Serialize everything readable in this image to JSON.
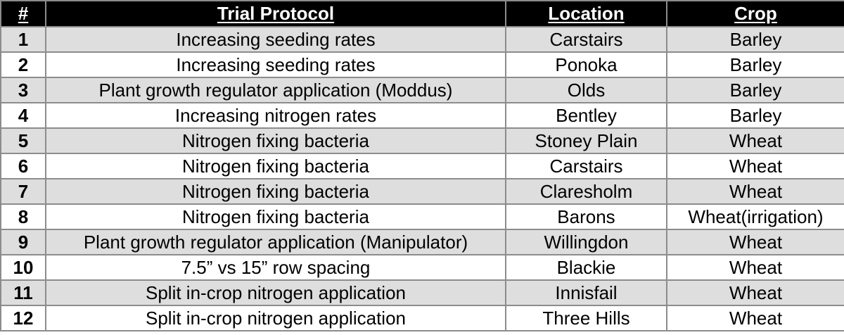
{
  "table": {
    "headers": [
      "#",
      "Trial Protocol",
      "Location",
      "Crop"
    ],
    "rows": [
      {
        "num": "1",
        "protocol": "Increasing seeding rates",
        "location": "Carstairs",
        "crop": "Barley"
      },
      {
        "num": "2",
        "protocol": "Increasing seeding rates",
        "location": "Ponoka",
        "crop": "Barley"
      },
      {
        "num": "3",
        "protocol": "Plant growth regulator application (Moddus)",
        "location": "Olds",
        "crop": "Barley"
      },
      {
        "num": "4",
        "protocol": "Increasing nitrogen rates",
        "location": "Bentley",
        "crop": "Barley"
      },
      {
        "num": "5",
        "protocol": "Nitrogen fixing bacteria",
        "location": "Stoney Plain",
        "crop": "Wheat"
      },
      {
        "num": "6",
        "protocol": "Nitrogen fixing bacteria",
        "location": "Carstairs",
        "crop": "Wheat"
      },
      {
        "num": "7",
        "protocol": "Nitrogen fixing bacteria",
        "location": "Claresholm",
        "crop": "Wheat"
      },
      {
        "num": "8",
        "protocol": "Nitrogen fixing bacteria",
        "location": "Barons",
        "crop": "Wheat(irrigation)"
      },
      {
        "num": "9",
        "protocol": "Plant growth regulator application (Manipulator)",
        "location": "Willingdon",
        "crop": "Wheat"
      },
      {
        "num": "10",
        "protocol": "7.5” vs 15” row spacing",
        "location": "Blackie",
        "crop": "Wheat"
      },
      {
        "num": "11",
        "protocol": "Split in-crop nitrogen application",
        "location": "Innisfail",
        "crop": "Wheat"
      },
      {
        "num": "12",
        "protocol": "Split in-crop nitrogen application",
        "location": "Three Hills",
        "crop": "Wheat"
      }
    ]
  },
  "colors": {
    "header_bg": "#000000",
    "header_text": "#ffffff",
    "row_shade": "#dedede",
    "row_plain": "#ffffff",
    "border": "#8c8c8c"
  }
}
